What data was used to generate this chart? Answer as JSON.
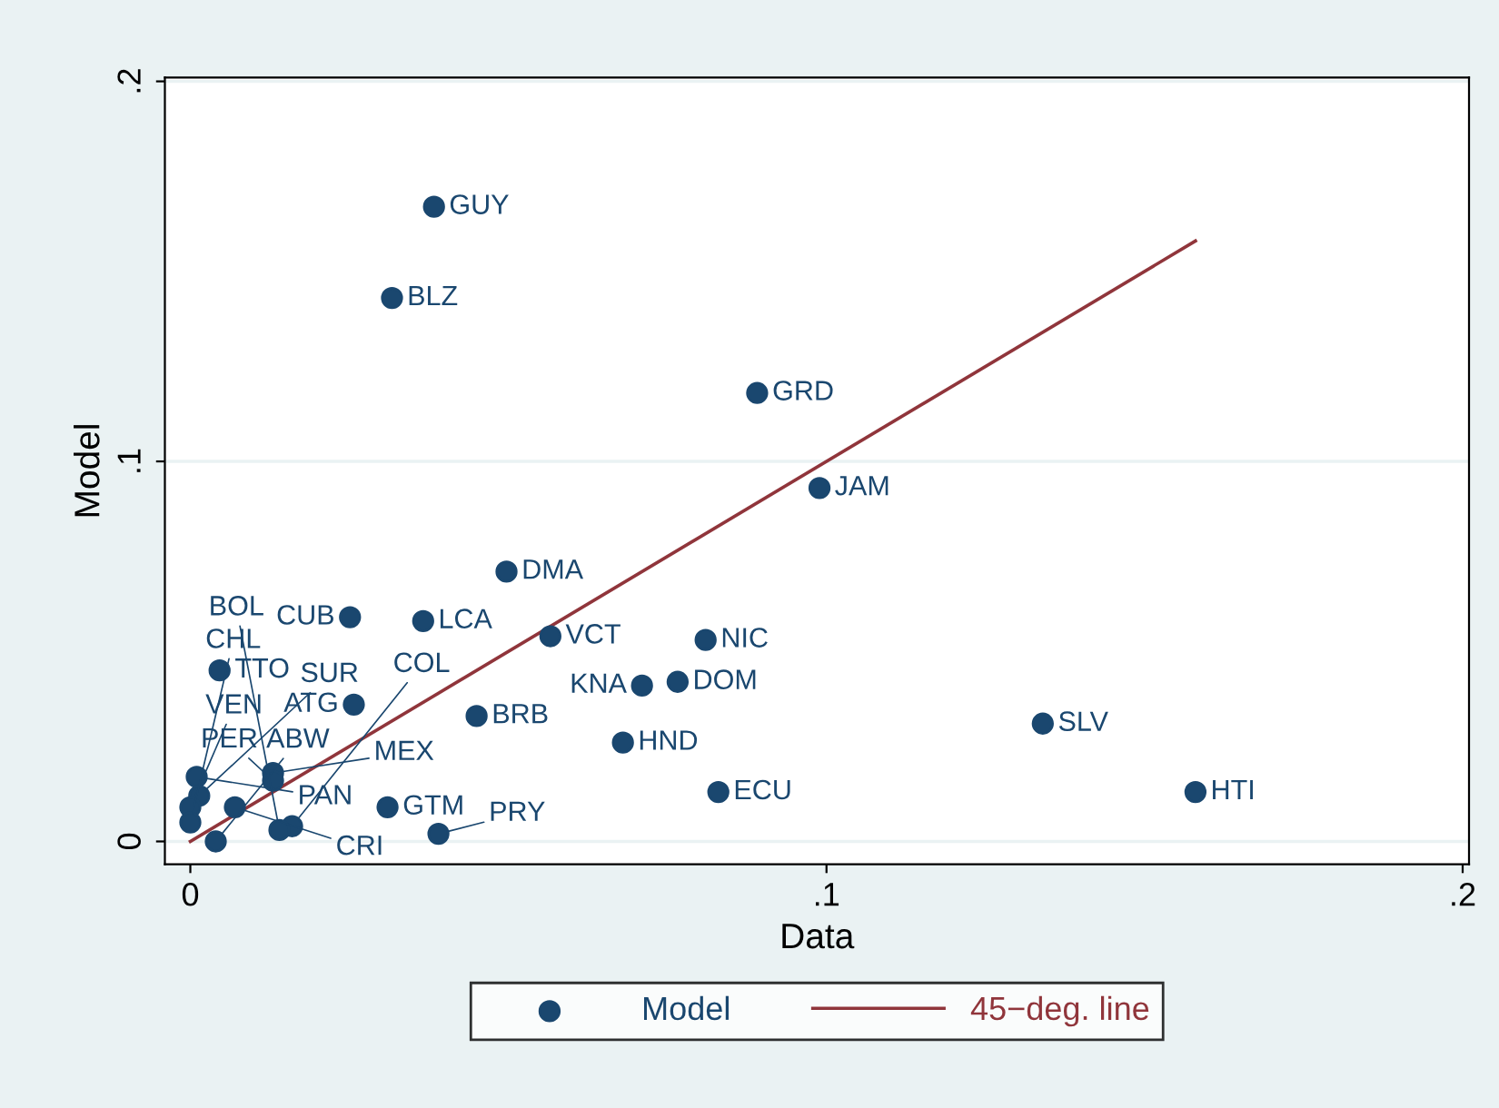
{
  "chart_data": {
    "type": "scatter",
    "xlabel": "Data",
    "ylabel": "Model",
    "xlim": [
      -0.004,
      0.201
    ],
    "ylim": [
      -0.006,
      0.201
    ],
    "xticks": [
      0,
      {
        "value": 0.1,
        "label": ".1"
      },
      {
        "value": 0.2,
        "label": ".2"
      }
    ],
    "yticks": [
      0,
      {
        "value": 0.1,
        "label": ".1"
      },
      {
        "value": 0.2,
        "label": ".2"
      }
    ],
    "grid": "y",
    "legend": "bottom",
    "marker": "circle",
    "series": [
      {
        "name": "Model",
        "color": "#1a476f",
        "x": [
          0.0383,
          0.0317,
          0.0891,
          0.0989,
          0.0497,
          0.0251,
          0.0366,
          0.0566,
          0.081,
          0.0046,
          0.071,
          0.0766,
          0.0257,
          0.045,
          0.068,
          0.134,
          0.083,
          0.158,
          0.031,
          0.039,
          0.001,
          0.013,
          0.013,
          0.0014,
          0.0,
          0.007,
          0.0,
          0.016,
          0.014,
          0.004
        ],
        "values": [
          0.167,
          0.143,
          0.118,
          0.093,
          0.071,
          0.059,
          0.058,
          0.054,
          0.053,
          0.045,
          0.041,
          0.042,
          0.036,
          0.033,
          0.026,
          0.031,
          0.013,
          0.013,
          0.009,
          0.002,
          0.017,
          0.018,
          0.016,
          0.012,
          0.009,
          0.009,
          0.005,
          0.004,
          0.003,
          0.0
        ]
      },
      {
        "name": "45−deg. line",
        "type": "line",
        "color": "#90353b",
        "marker": "none",
        "line_style": "solid",
        "x": [
          0,
          0.158
        ],
        "values": [
          0,
          0.158
        ]
      }
    ],
    "annotations": [
      {
        "text": "GUY",
        "x": 0.0383,
        "y": 0.167
      },
      {
        "text": "BLZ",
        "x": 0.0317,
        "y": 0.143
      },
      {
        "text": "GRD",
        "x": 0.0891,
        "y": 0.118
      },
      {
        "text": "JAM",
        "x": 0.0989,
        "y": 0.093
      },
      {
        "text": "DMA",
        "x": 0.0497,
        "y": 0.071
      },
      {
        "text": "CUB",
        "x": 0.0251,
        "y": 0.059
      },
      {
        "text": "LCA",
        "x": 0.0366,
        "y": 0.058
      },
      {
        "text": "VCT",
        "x": 0.0566,
        "y": 0.054
      },
      {
        "text": "NIC",
        "x": 0.081,
        "y": 0.053
      },
      {
        "text": "TTO",
        "x": 0.0046,
        "y": 0.045
      },
      {
        "text": "KNA",
        "x": 0.071,
        "y": 0.041
      },
      {
        "text": "DOM",
        "x": 0.0766,
        "y": 0.042
      },
      {
        "text": "ATG",
        "x": 0.0257,
        "y": 0.036
      },
      {
        "text": "BRB",
        "x": 0.045,
        "y": 0.033
      },
      {
        "text": "HND",
        "x": 0.068,
        "y": 0.026
      },
      {
        "text": "SLV",
        "x": 0.134,
        "y": 0.031
      },
      {
        "text": "ECU",
        "x": 0.083,
        "y": 0.013
      },
      {
        "text": "HTI",
        "x": 0.158,
        "y": 0.013
      },
      {
        "text": "GTM",
        "x": 0.031,
        "y": 0.009
      },
      {
        "text": "PRY",
        "x": 0.039,
        "y": 0.002
      },
      {
        "text": "PAN",
        "x": 0.001,
        "y": 0.017
      },
      {
        "text": "MEX",
        "x": 0.013,
        "y": 0.018
      },
      {
        "text": "PER",
        "x": 0.013,
        "y": 0.016
      },
      {
        "text": "SUR",
        "x": 0.0014,
        "y": 0.012
      },
      {
        "text": "VEN",
        "x": 0.0,
        "y": 0.009
      },
      {
        "text": "CRI",
        "x": 0.007,
        "y": 0.009
      },
      {
        "text": "CHL",
        "x": 0.0,
        "y": 0.005
      },
      {
        "text": "COL",
        "x": 0.016,
        "y": 0.004
      },
      {
        "text": "BOL",
        "x": 0.014,
        "y": 0.003
      },
      {
        "text": "ABW",
        "x": 0.004,
        "y": 0.0
      }
    ]
  }
}
